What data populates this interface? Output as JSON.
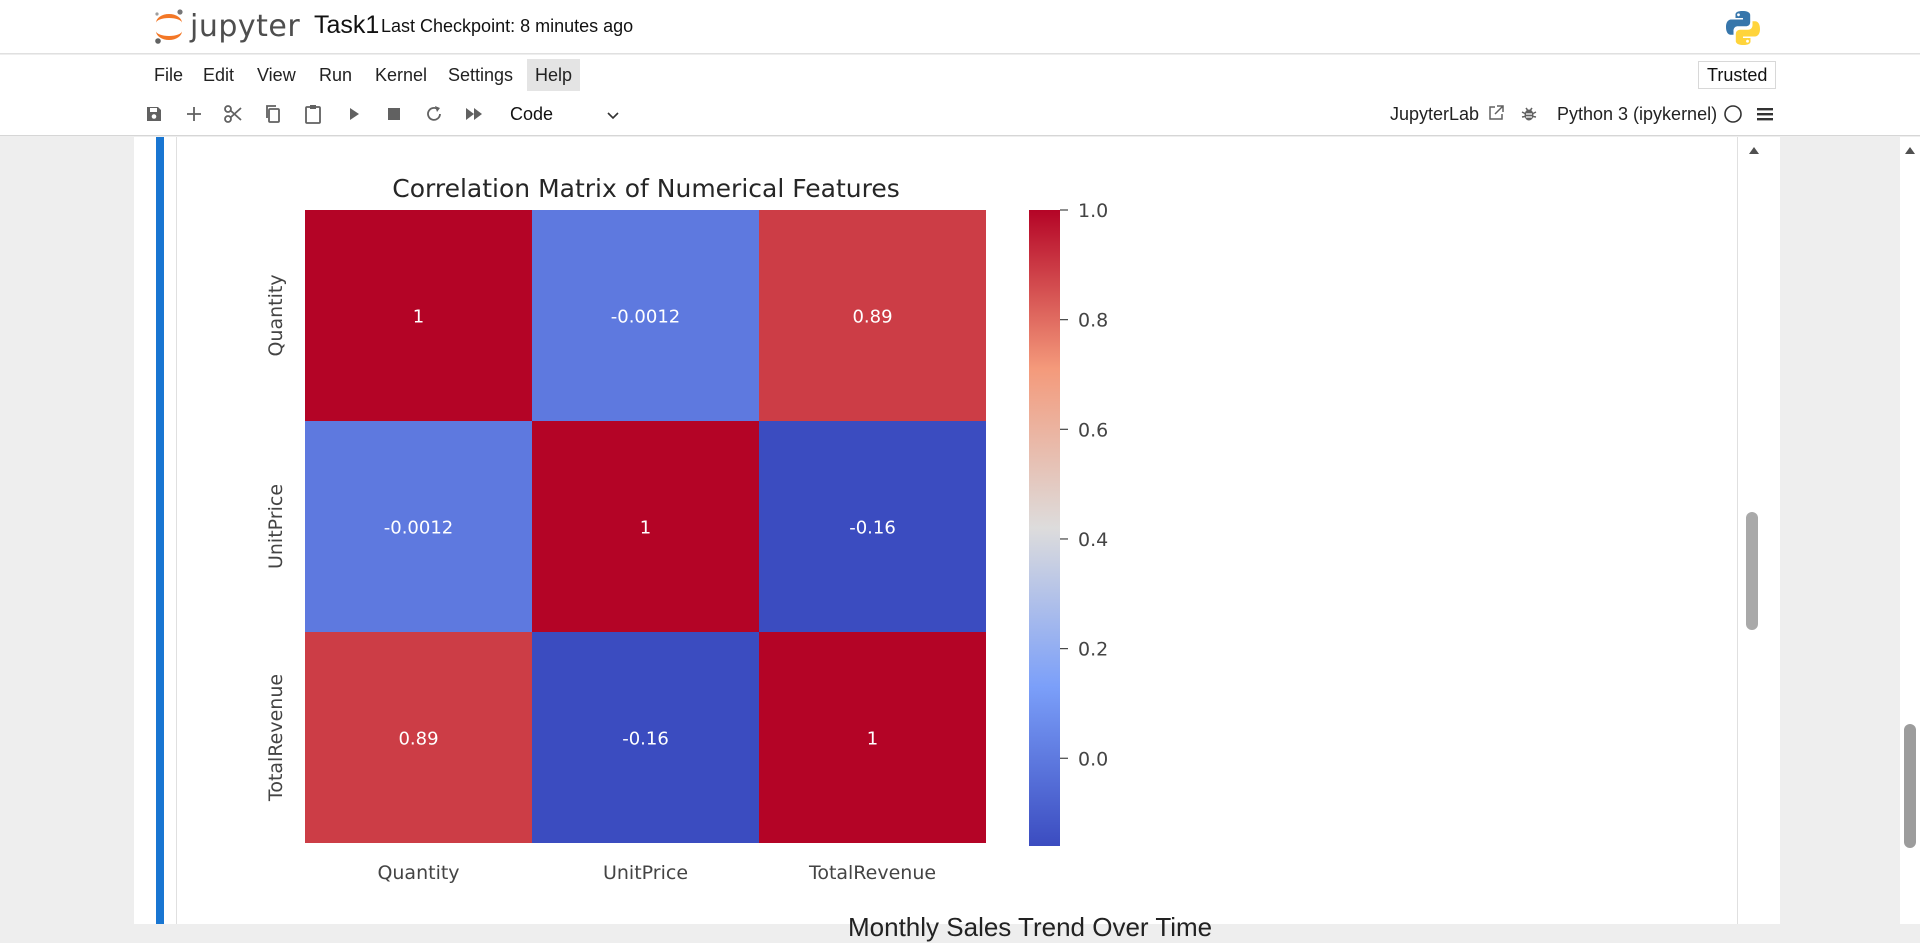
{
  "header": {
    "logo_text": "jupyter",
    "notebook_title": "Task1",
    "checkpoint": "Last Checkpoint: 8 minutes ago"
  },
  "menu": {
    "items": [
      "File",
      "Edit",
      "View",
      "Run",
      "Kernel",
      "Settings",
      "Help"
    ],
    "trusted": "Trusted"
  },
  "toolbar": {
    "icons": [
      "save-icon",
      "add-cell-icon",
      "cut-icon",
      "copy-icon",
      "paste-icon",
      "run-icon",
      "stop-icon",
      "restart-icon",
      "fast-forward-icon"
    ],
    "cell_type": "Code",
    "jupyterlab_label": "JupyterLab",
    "kernel_name": "Python 3 (ipykernel)"
  },
  "colors": {
    "accent": "#1976d2",
    "orange": "#f37726"
  },
  "chart_data": {
    "type": "heatmap",
    "title": "Correlation Matrix of Numerical Features",
    "rows": [
      "Quantity",
      "UnitPrice",
      "TotalRevenue"
    ],
    "columns": [
      "Quantity",
      "UnitPrice",
      "TotalRevenue"
    ],
    "values": [
      [
        1,
        -0.0012,
        0.89
      ],
      [
        -0.0012,
        1,
        -0.16
      ],
      [
        0.89,
        -0.16,
        1
      ]
    ],
    "annotations": [
      [
        "1",
        "-0.0012",
        "0.89"
      ],
      [
        "-0.0012",
        "1",
        "-0.16"
      ],
      [
        "0.89",
        "-0.16",
        "1"
      ]
    ],
    "colormap": "coolwarm",
    "colorbar": {
      "min": -0.16,
      "max": 1.0,
      "ticks": [
        "1.0",
        "0.8",
        "0.6",
        "0.4",
        "0.2",
        "0.0"
      ]
    }
  },
  "next_output_title_partial": "Monthly Sales Trend Over Time"
}
